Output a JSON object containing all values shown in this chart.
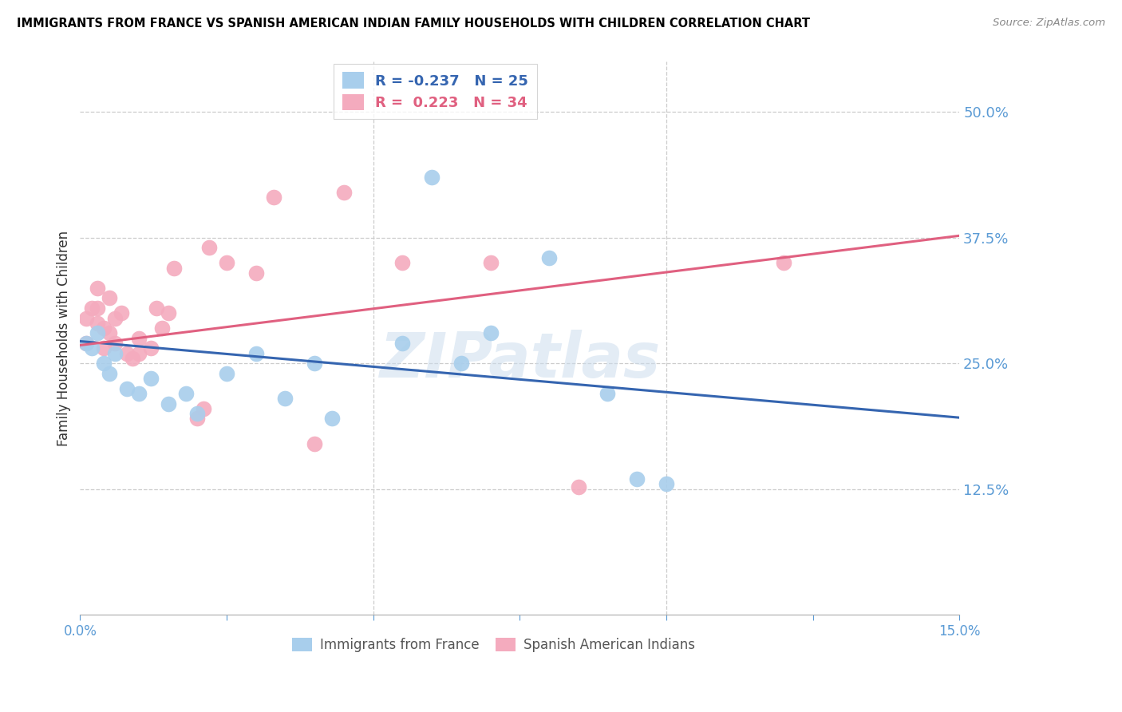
{
  "title": "IMMIGRANTS FROM FRANCE VS SPANISH AMERICAN INDIAN FAMILY HOUSEHOLDS WITH CHILDREN CORRELATION CHART",
  "source": "Source: ZipAtlas.com",
  "ylabel": "Family Households with Children",
  "ytick_values": [
    0.5,
    0.375,
    0.25,
    0.125
  ],
  "ytick_labels": [
    "50.0%",
    "37.5%",
    "25.0%",
    "12.5%"
  ],
  "xlim": [
    0.0,
    0.15
  ],
  "ylim": [
    0.0,
    0.55
  ],
  "blue_color": "#A8CEEC",
  "pink_color": "#F4ABBE",
  "blue_line_color": "#3565B0",
  "pink_line_color": "#E06080",
  "watermark": "ZIPatlas",
  "blue_points_x": [
    0.001,
    0.002,
    0.003,
    0.004,
    0.005,
    0.006,
    0.008,
    0.01,
    0.012,
    0.015,
    0.018,
    0.02,
    0.025,
    0.03,
    0.035,
    0.04,
    0.043,
    0.055,
    0.06,
    0.065,
    0.07,
    0.08,
    0.09,
    0.095,
    0.1
  ],
  "blue_points_y": [
    0.27,
    0.265,
    0.28,
    0.25,
    0.24,
    0.26,
    0.225,
    0.22,
    0.235,
    0.21,
    0.22,
    0.2,
    0.24,
    0.26,
    0.215,
    0.25,
    0.195,
    0.27,
    0.435,
    0.25,
    0.28,
    0.355,
    0.22,
    0.135,
    0.13
  ],
  "pink_points_x": [
    0.001,
    0.001,
    0.002,
    0.003,
    0.003,
    0.003,
    0.004,
    0.004,
    0.005,
    0.005,
    0.006,
    0.006,
    0.007,
    0.008,
    0.009,
    0.01,
    0.01,
    0.012,
    0.013,
    0.014,
    0.015,
    0.016,
    0.02,
    0.021,
    0.022,
    0.025,
    0.03,
    0.033,
    0.04,
    0.045,
    0.055,
    0.07,
    0.085,
    0.12
  ],
  "pink_points_y": [
    0.27,
    0.295,
    0.305,
    0.305,
    0.29,
    0.325,
    0.265,
    0.285,
    0.315,
    0.28,
    0.27,
    0.295,
    0.3,
    0.26,
    0.255,
    0.26,
    0.275,
    0.265,
    0.305,
    0.285,
    0.3,
    0.345,
    0.195,
    0.205,
    0.365,
    0.35,
    0.34,
    0.415,
    0.17,
    0.42,
    0.35,
    0.35,
    0.127,
    0.35
  ],
  "blue_line_x0": 0.0,
  "blue_line_y0": 0.272,
  "blue_line_x1": 0.15,
  "blue_line_y1": 0.196,
  "pink_line_x0": 0.0,
  "pink_line_y0": 0.268,
  "pink_line_x1": 0.15,
  "pink_line_y1": 0.377,
  "blue_R": -0.237,
  "blue_N": 25,
  "pink_R": 0.223,
  "pink_N": 34
}
